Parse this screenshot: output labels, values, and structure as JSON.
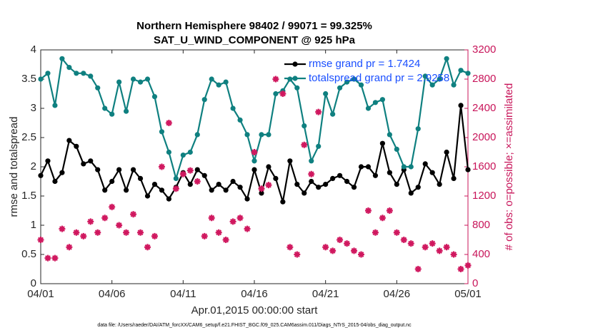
{
  "chart_data": {
    "type": "line",
    "title": "Northern Hemisphere 98402 / 99071 = 99.325%",
    "subtitle": "SAT_U_WIND_COMPONENT @ 925 hPa",
    "xlabel": "Apr.01,2015 00:00:00 start",
    "ylabel": "rmse and totalspread",
    "y2label": "# of obs: o=possible; ×=assimilated",
    "annotation": "data file: /Users/raeder/DAI/ATM_forcXX/CAM6_setup/f.e21.FHIST_BGC.f09_025.CAM6assim.011/Diags_NTrS_2015-04/obs_diag_output.nc",
    "x": [
      0,
      0.5,
      1,
      1.5,
      2,
      2.5,
      3,
      3.5,
      4,
      4.5,
      5,
      5.5,
      6,
      6.5,
      7,
      7.5,
      8,
      8.5,
      9,
      9.5,
      10,
      10.5,
      11,
      11.5,
      12,
      12.5,
      13,
      13.5,
      14,
      14.5,
      15,
      15.5,
      16,
      16.5,
      17,
      17.5,
      18,
      18.5,
      19,
      19.5,
      20,
      20.5,
      21,
      21.5,
      22,
      22.5,
      23,
      23.5,
      24,
      24.5,
      25,
      25.5,
      26,
      26.5,
      27,
      27.5,
      28,
      28.5,
      29,
      29.5,
      30
    ],
    "xlim": [
      0,
      30
    ],
    "xticks": [
      {
        "value": 0,
        "label": "04/01"
      },
      {
        "value": 5,
        "label": "04/06"
      },
      {
        "value": 10,
        "label": "04/11"
      },
      {
        "value": 15,
        "label": "04/16"
      },
      {
        "value": 20,
        "label": "04/21"
      },
      {
        "value": 25,
        "label": "04/26"
      },
      {
        "value": 30,
        "label": "05/01"
      }
    ],
    "ylim": [
      0,
      4
    ],
    "yticks": [
      0,
      0.5,
      1,
      1.5,
      2,
      2.5,
      3,
      3.5,
      4
    ],
    "y2lim": [
      0,
      3200
    ],
    "y2ticks": [
      0,
      400,
      800,
      1200,
      1600,
      2000,
      2400,
      2800,
      3200
    ],
    "y2color": "#c8155a",
    "legend": "upper right",
    "series": [
      {
        "name": "rmse grand pr = 1.7424",
        "color": "#000000",
        "values": [
          1.85,
          2.1,
          1.75,
          1.9,
          2.45,
          2.35,
          2.05,
          2.1,
          1.95,
          1.6,
          1.75,
          1.95,
          1.6,
          1.95,
          1.8,
          1.5,
          1.7,
          1.6,
          1.45,
          1.65,
          1.9,
          1.7,
          1.95,
          1.85,
          1.6,
          1.7,
          1.6,
          1.75,
          1.65,
          1.45,
          1.95,
          1.55,
          2.0,
          1.8,
          1.4,
          2.1,
          1.7,
          1.55,
          1.75,
          1.65,
          1.7,
          1.8,
          1.85,
          1.75,
          1.65,
          2.0,
          2.0,
          1.85,
          2.4,
          1.9,
          1.7,
          1.95,
          1.55,
          1.65,
          2.05,
          1.9,
          1.7,
          2.25,
          1.8,
          3.05,
          1.95
        ]
      },
      {
        "name": "totalspread grand pr = 2.9258",
        "color": "#0f8080",
        "values": [
          3.5,
          3.6,
          3.05,
          3.85,
          3.7,
          3.6,
          3.6,
          3.55,
          3.35,
          3.0,
          2.9,
          3.45,
          2.95,
          3.5,
          3.45,
          3.5,
          3.2,
          2.6,
          2.25,
          1.8,
          2.2,
          2.25,
          2.55,
          3.15,
          3.5,
          3.4,
          3.45,
          3.0,
          2.8,
          2.55,
          2.1,
          2.55,
          2.55,
          3.25,
          3.3,
          3.5,
          3.35,
          2.7,
          2.1,
          2.35,
          3.25,
          2.9,
          3.35,
          3.45,
          3.5,
          3.4,
          3.0,
          3.1,
          3.15,
          2.55,
          2.3,
          2.0,
          2.0,
          2.65,
          3.55,
          3.4,
          3.5,
          3.85,
          3.4,
          3.65,
          3.6
        ]
      },
      {
        "type": "scatter",
        "axis": "y2",
        "color": "#d0185f",
        "values": [
          600,
          350,
          350,
          750,
          500,
          700,
          650,
          850,
          700,
          900,
          1050,
          800,
          700,
          950,
          700,
          500,
          650,
          1600,
          2200,
          1300,
          1500,
          1550,
          1400,
          650,
          900,
          700,
          600,
          850,
          900,
          750,
          1800,
          1300,
          1350,
          2800,
          2600,
          500,
          400,
          1900,
          1500,
          2350,
          500,
          450,
          600,
          550,
          450,
          400,
          1000,
          700,
          900,
          1000,
          700,
          600,
          550,
          200,
          500,
          550,
          450,
          500,
          400,
          200,
          250
        ]
      }
    ]
  }
}
